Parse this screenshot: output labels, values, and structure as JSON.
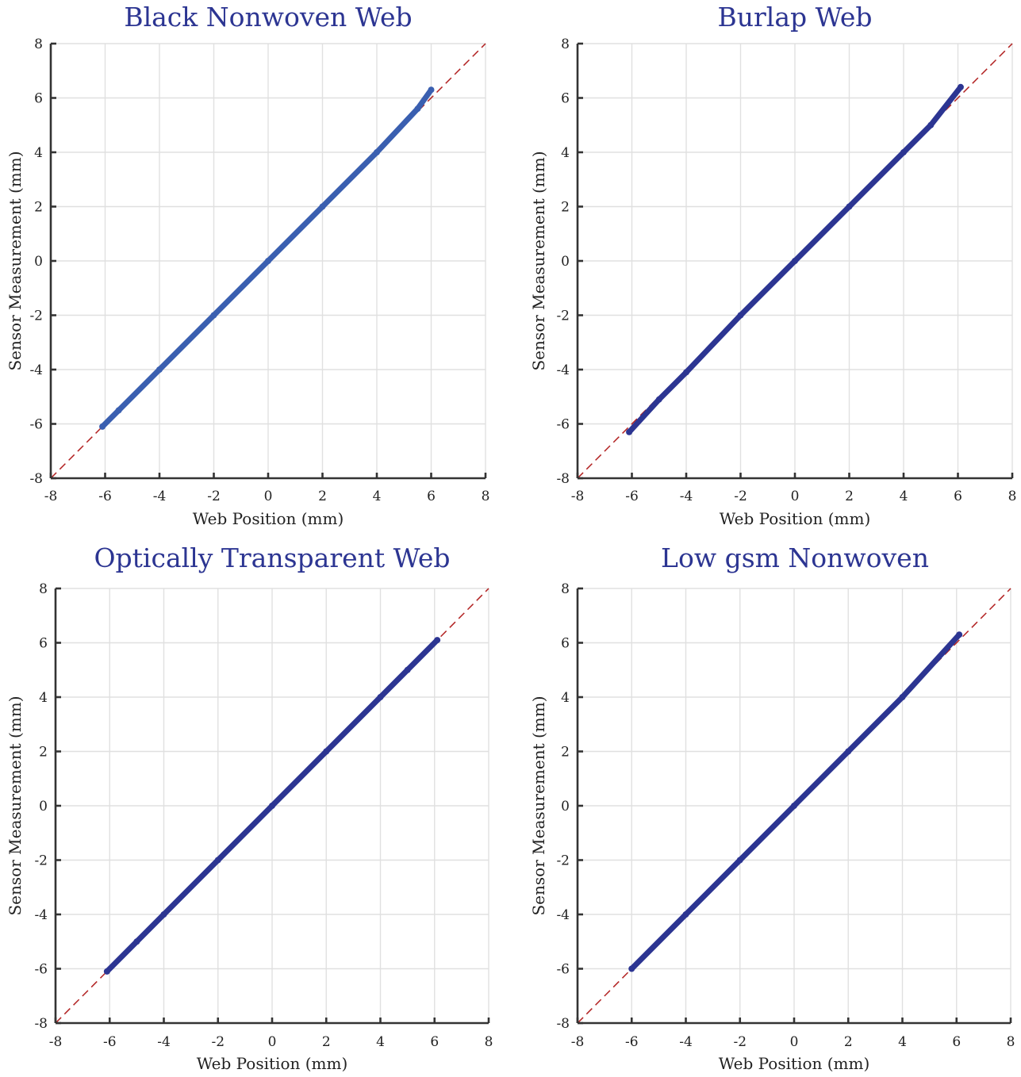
{
  "colors": {
    "title": "#2c3592",
    "reference_line": "#b22222",
    "axis": "#333333",
    "grid": "#e0e0e0"
  },
  "chart_data": [
    {
      "type": "scatter",
      "title": "Black Nonwoven Web",
      "xlabel": "Web Position (mm)",
      "ylabel": "Sensor Measurement (mm)",
      "xlim": [
        -8,
        8
      ],
      "ylim": [
        -8,
        8
      ],
      "xticks": [
        "-8",
        "-6",
        "-4",
        "-2",
        "0",
        "2",
        "4",
        "6",
        "8"
      ],
      "yticks": [
        "8",
        "6",
        "4",
        "2",
        "0",
        "-2",
        "-4",
        "-6",
        "-8"
      ],
      "grid": true,
      "reference_line": {
        "style": "dashed",
        "x": [
          -8,
          8
        ],
        "y": [
          -8,
          8
        ]
      },
      "series": [
        {
          "color": "#3a5fb0",
          "x": [
            -6.1,
            -5.5,
            -4,
            -2,
            0,
            2,
            4,
            5.5,
            6.0
          ],
          "y": [
            -6.1,
            -5.5,
            -4,
            -2,
            0,
            2,
            4,
            5.6,
            6.3
          ]
        }
      ]
    },
    {
      "type": "scatter",
      "title": "Burlap Web",
      "xlabel": "Web Position (mm)",
      "ylabel": "Sensor Measurement (mm)",
      "xlim": [
        -8,
        8
      ],
      "ylim": [
        -8,
        8
      ],
      "xticks": [
        "-8",
        "-6",
        "-4",
        "-2",
        "0",
        "2",
        "4",
        "6",
        "8"
      ],
      "yticks": [
        "8",
        "6",
        "4",
        "2",
        "0",
        "-2",
        "-4",
        "-6",
        "-8"
      ],
      "grid": true,
      "reference_line": {
        "style": "dashed",
        "x": [
          -8,
          8
        ],
        "y": [
          -8,
          8
        ]
      },
      "series": [
        {
          "color": "#2c3592",
          "x": [
            -6.1,
            -5,
            -4,
            -2,
            0,
            2,
            4,
            5,
            6.1
          ],
          "y": [
            -6.3,
            -5.1,
            -4.1,
            -2.0,
            0,
            2.0,
            4.0,
            5.0,
            6.4
          ]
        }
      ]
    },
    {
      "type": "scatter",
      "title": "Optically Transparent Web",
      "xlabel": "Web Position (mm)",
      "ylabel": "Sensor Measurement (mm)",
      "xlim": [
        -8,
        8
      ],
      "ylim": [
        -8,
        8
      ],
      "xticks": [
        "-8",
        "-6",
        "-4",
        "-2",
        "0",
        "2",
        "4",
        "6",
        "8"
      ],
      "yticks": [
        "8",
        "6",
        "4",
        "2",
        "0",
        "-2",
        "-4",
        "-6",
        "-8"
      ],
      "grid": true,
      "reference_line": {
        "style": "dashed",
        "x": [
          -8,
          8
        ],
        "y": [
          -8,
          8
        ]
      },
      "series": [
        {
          "color": "#2c3592",
          "x": [
            -6.1,
            -5,
            -4,
            -2,
            0,
            2,
            4,
            5,
            6.1
          ],
          "y": [
            -6.1,
            -5.0,
            -4.0,
            -2.0,
            0,
            2.0,
            4.0,
            5.0,
            6.1
          ]
        }
      ]
    },
    {
      "type": "scatter",
      "title": "Low gsm Nonwoven",
      "xlabel": "Web Position (mm)",
      "ylabel": "Sensor Measurement (mm)",
      "xlim": [
        -8,
        8
      ],
      "ylim": [
        -8,
        8
      ],
      "xticks": [
        "-8",
        "-6",
        "-4",
        "-2",
        "0",
        "2",
        "4",
        "6",
        "8"
      ],
      "yticks": [
        "8",
        "6",
        "4",
        "2",
        "0",
        "-2",
        "-4",
        "-6",
        "-8"
      ],
      "grid": true,
      "reference_line": {
        "style": "dashed",
        "x": [
          -8,
          8
        ],
        "y": [
          -8,
          8
        ]
      },
      "series": [
        {
          "color": "#2c3592",
          "x": [
            -6.0,
            -4,
            -2,
            0,
            2,
            4,
            6.1
          ],
          "y": [
            -6.0,
            -4.0,
            -2.0,
            0,
            2.0,
            4.0,
            6.3
          ]
        }
      ]
    }
  ]
}
